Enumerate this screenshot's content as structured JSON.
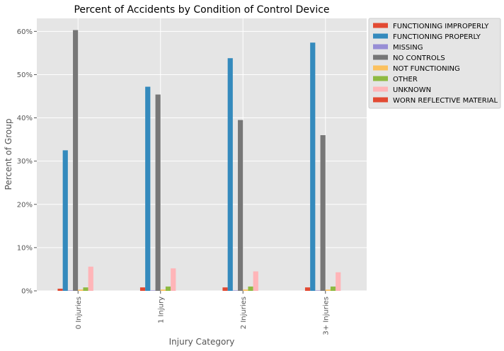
{
  "chart_data": {
    "type": "bar",
    "title": "Percent of Accidents by Condition of Control Device",
    "xlabel": "Injury Category",
    "ylabel": "Percent of Group",
    "categories": [
      "0 Injuries",
      "1 Injury",
      "2 Injuries",
      "3+ Injuries"
    ],
    "ylim": [
      0,
      63
    ],
    "y_ticks": [
      0,
      10,
      20,
      30,
      40,
      50,
      60
    ],
    "y_tick_labels": [
      "0%",
      "10%",
      "20%",
      "30%",
      "40%",
      "50%",
      "60%"
    ],
    "grid": true,
    "legend_position": "outside-top-right",
    "series": [
      {
        "name": "FUNCTIONING IMPROPERLY",
        "color": "#E24A33",
        "values": [
          0.5,
          0.8,
          0.8,
          0.8
        ]
      },
      {
        "name": "FUNCTIONING PROPERLY",
        "color": "#348ABD",
        "values": [
          32.5,
          47.2,
          53.8,
          57.4
        ]
      },
      {
        "name": "MISSING",
        "color": "#988ED5",
        "values": [
          0.1,
          0.1,
          0.1,
          0.1
        ]
      },
      {
        "name": "NO CONTROLS",
        "color": "#777777",
        "values": [
          60.3,
          45.4,
          39.5,
          36.0
        ]
      },
      {
        "name": "NOT FUNCTIONING",
        "color": "#FBC15E",
        "values": [
          0.3,
          0.3,
          0.3,
          0.3
        ]
      },
      {
        "name": "OTHER",
        "color": "#8EBA42",
        "values": [
          0.8,
          1.0,
          1.0,
          1.0
        ]
      },
      {
        "name": "UNKNOWN",
        "color": "#FFB5B8",
        "values": [
          5.6,
          5.2,
          4.5,
          4.3
        ]
      },
      {
        "name": "WORN REFLECTIVE MATERIAL",
        "color": "#E24A33",
        "values": [
          0.0,
          0.0,
          0.0,
          0.0
        ]
      }
    ]
  }
}
